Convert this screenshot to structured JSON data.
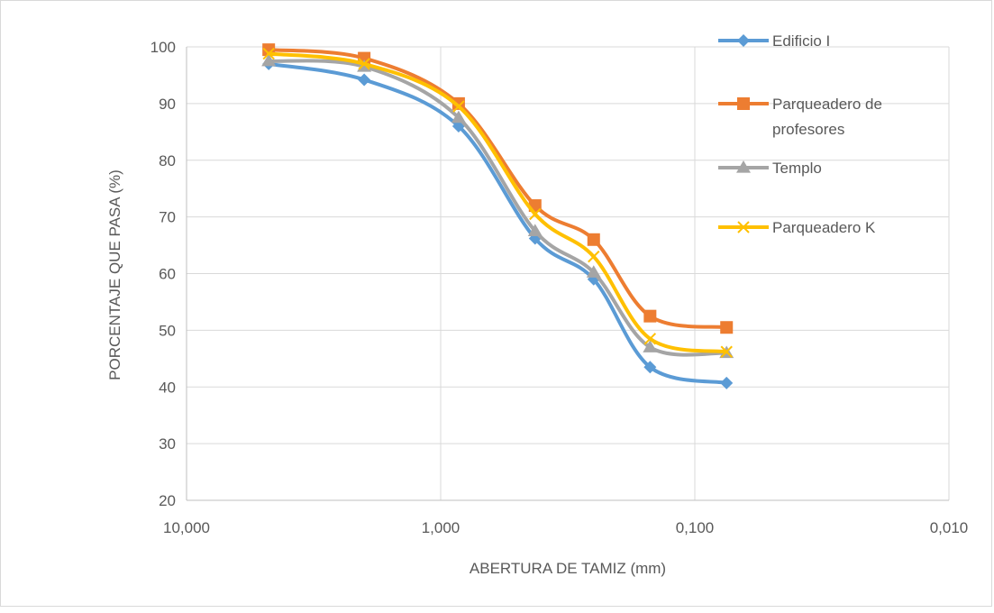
{
  "chart_data": {
    "type": "line",
    "title": "",
    "xlabel": "ABERTURA DE TAMIZ (mm)",
    "ylabel": "PORCENTAJE QUE PASA (%)",
    "x_scale": "log",
    "x_reversed": true,
    "xlim": [
      10,
      0.01
    ],
    "ylim": [
      20,
      100
    ],
    "x_ticks": [
      {
        "value": 10,
        "label": "10,000"
      },
      {
        "value": 1,
        "label": "1,000"
      },
      {
        "value": 0.1,
        "label": "0,100"
      },
      {
        "value": 0.01,
        "label": "0,010"
      }
    ],
    "y_ticks": [
      20,
      30,
      40,
      50,
      60,
      70,
      80,
      90,
      100
    ],
    "grid": true,
    "legend_position": "right",
    "x": [
      4.75,
      2.0,
      0.85,
      0.425,
      0.25,
      0.15,
      0.075
    ],
    "series": [
      {
        "name": "Edificio I",
        "color": "#5B9BD5",
        "marker": "diamond",
        "values": [
          97.0,
          94.2,
          86.0,
          66.2,
          59.0,
          43.5,
          40.7
        ]
      },
      {
        "name": "Parqueadero de profesores",
        "color": "#ED7D31",
        "marker": "square",
        "values": [
          99.5,
          98.0,
          90.0,
          72.0,
          66.0,
          52.5,
          50.5
        ]
      },
      {
        "name": "Templo",
        "color": "#A5A5A5",
        "marker": "triangle",
        "values": [
          97.5,
          96.5,
          87.5,
          67.5,
          60.2,
          47.0,
          46.0
        ]
      },
      {
        "name": "Parqueadero K",
        "color": "#FFC000",
        "marker": "x",
        "values": [
          98.8,
          97.0,
          89.5,
          70.5,
          63.0,
          48.5,
          46.2
        ]
      }
    ]
  }
}
